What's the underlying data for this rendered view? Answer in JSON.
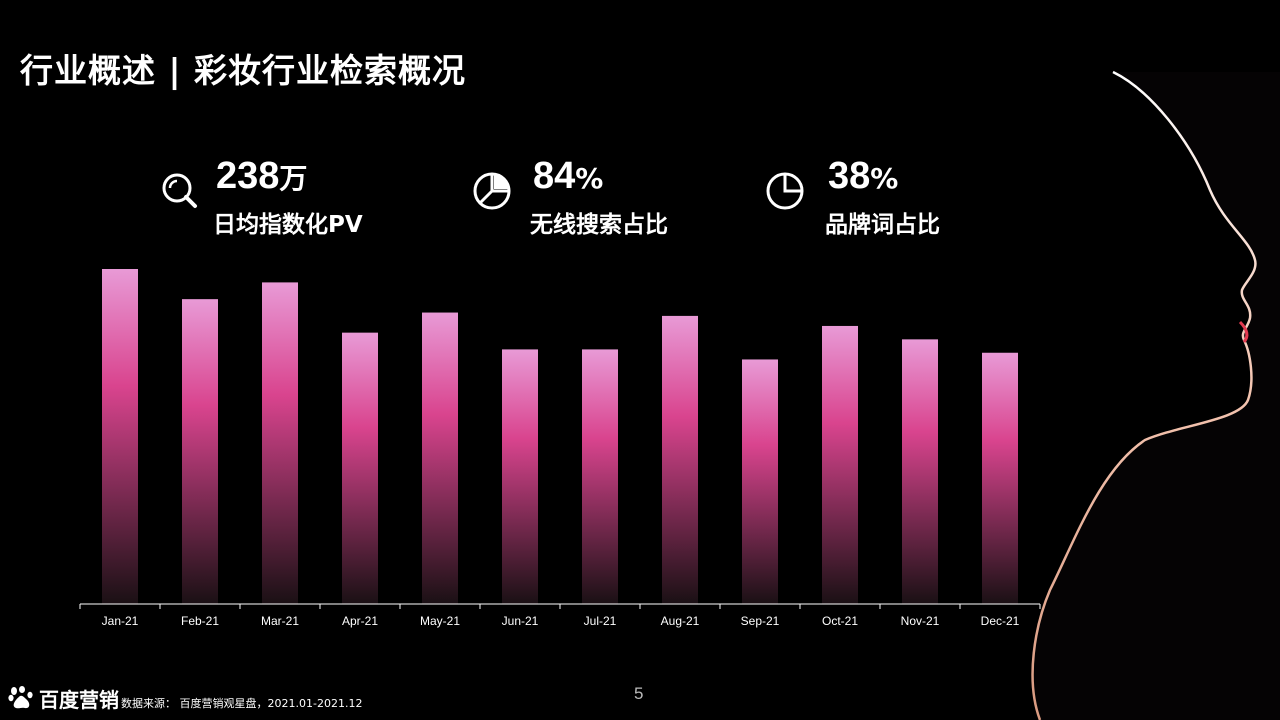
{
  "title": "行业概述 | 彩妆行业检索概况",
  "stats": [
    {
      "value": "238",
      "unit": "万",
      "label": "日均指数化PV",
      "icon": "search-icon"
    },
    {
      "value": "84",
      "unit": "%",
      "label": "无线搜索占比",
      "icon": "pie-chart-icon"
    },
    {
      "value": "38",
      "unit": "%",
      "label": "品牌词占比",
      "icon": "pie-chart-icon"
    }
  ],
  "chart_data": {
    "type": "bar",
    "categories": [
      "Jan-21",
      "Feb-21",
      "Mar-21",
      "Apr-21",
      "May-21",
      "Jun-21",
      "Jul-21",
      "Aug-21",
      "Sep-21",
      "Oct-21",
      "Nov-21",
      "Dec-21"
    ],
    "values": [
      100,
      91,
      96,
      81,
      87,
      76,
      76,
      86,
      73,
      83,
      79,
      75
    ],
    "ylim": [
      0,
      100
    ],
    "grid": false,
    "legend": "none",
    "colors": {
      "top": "#e89ad6",
      "mid": "#d9448e",
      "bottom": "#1a1014",
      "axis": "#ffffff"
    }
  },
  "footer": {
    "brand": "百度营销",
    "source": "数据来源： 百度营销观星盘，2021.01-2021.12",
    "page": "5"
  }
}
